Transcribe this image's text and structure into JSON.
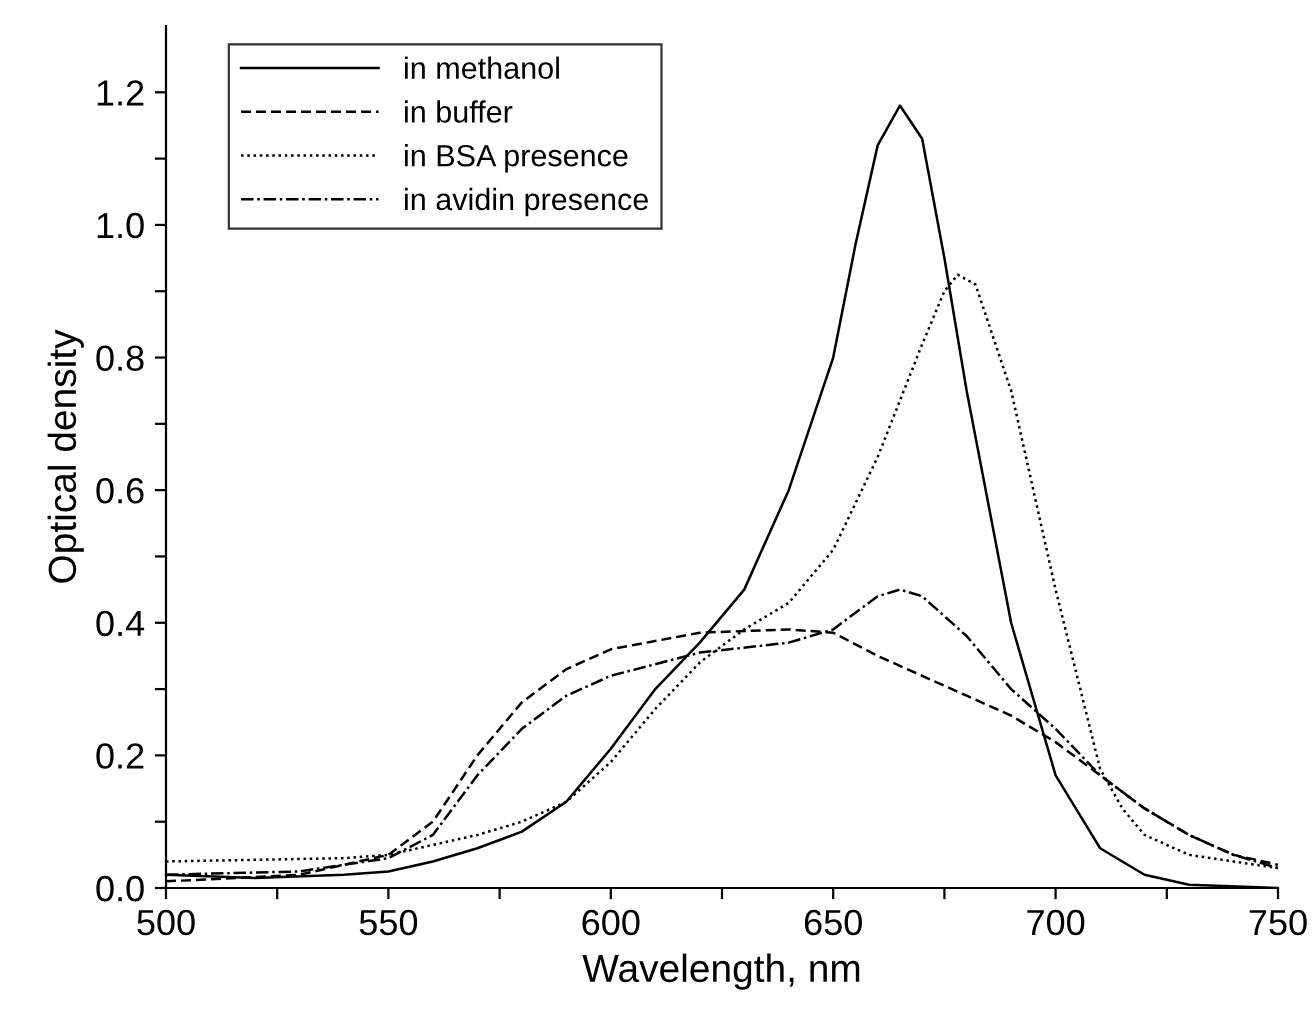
{
  "chart_data": {
    "type": "line",
    "xlabel": "Wavelength, nm",
    "ylabel": "Optical density",
    "xlim": [
      500,
      750
    ],
    "ylim": [
      0,
      1.3
    ],
    "xticks": [
      500,
      {
        "value": 525,
        "label": null
      },
      550,
      {
        "value": 575,
        "label": null
      },
      600,
      {
        "value": 625,
        "label": null
      },
      650,
      {
        "value": 675,
        "label": null
      },
      700,
      {
        "value": 725,
        "label": null
      },
      750
    ],
    "yticks": [
      {
        "value": 0,
        "label": "0.0"
      },
      {
        "value": 0.1,
        "label": null
      },
      0.2,
      {
        "value": 0.3,
        "label": null
      },
      0.4,
      {
        "value": 0.5,
        "label": null
      },
      0.6,
      {
        "value": 0.7,
        "label": null
      },
      0.8,
      {
        "value": 0.9,
        "label": null
      },
      {
        "value": 1.0,
        "label": "1.0"
      },
      {
        "value": 1.1,
        "label": null
      },
      1.2
    ],
    "legend": "top left",
    "grid": false,
    "marker": "none",
    "series": [
      {
        "name": "in methanol",
        "color": "#000000",
        "line_style": "solid",
        "x": [
          500,
          520,
          540,
          550,
          560,
          570,
          580,
          590,
          600,
          610,
          620,
          630,
          640,
          650,
          655,
          660,
          665,
          670,
          675,
          680,
          690,
          700,
          710,
          720,
          730,
          750
        ],
        "values": [
          0.02,
          0.015,
          0.02,
          0.025,
          0.04,
          0.06,
          0.085,
          0.13,
          0.21,
          0.3,
          0.37,
          0.45,
          0.6,
          0.8,
          0.97,
          1.12,
          1.18,
          1.13,
          0.95,
          0.75,
          0.4,
          0.17,
          0.06,
          0.02,
          0.005,
          0.0
        ]
      },
      {
        "name": "in buffer",
        "color": "#000000",
        "line_style": "dashed",
        "x": [
          500,
          530,
          550,
          560,
          570,
          580,
          590,
          600,
          620,
          640,
          650,
          660,
          670,
          680,
          690,
          700,
          710,
          720,
          730,
          740,
          750
        ],
        "values": [
          0.01,
          0.02,
          0.05,
          0.1,
          0.2,
          0.28,
          0.33,
          0.36,
          0.385,
          0.39,
          0.385,
          0.35,
          0.32,
          0.29,
          0.26,
          0.22,
          0.17,
          0.12,
          0.08,
          0.05,
          0.035
        ]
      },
      {
        "name": "in BSA presence",
        "color": "#000000",
        "line_style": "dotted",
        "x": [
          500,
          540,
          550,
          560,
          570,
          580,
          590,
          600,
          610,
          620,
          630,
          640,
          650,
          660,
          670,
          675,
          678,
          682,
          690,
          700,
          710,
          715,
          720,
          730,
          740,
          750
        ],
        "values": [
          0.04,
          0.045,
          0.05,
          0.065,
          0.08,
          0.1,
          0.13,
          0.19,
          0.27,
          0.34,
          0.39,
          0.43,
          0.51,
          0.65,
          0.82,
          0.9,
          0.925,
          0.91,
          0.75,
          0.45,
          0.18,
          0.12,
          0.08,
          0.05,
          0.04,
          0.03
        ]
      },
      {
        "name": "in avidin presence",
        "color": "#000000",
        "line_style": "dashdot",
        "x": [
          500,
          530,
          550,
          560,
          570,
          580,
          590,
          600,
          620,
          640,
          650,
          660,
          665,
          670,
          680,
          690,
          700,
          710,
          720,
          730,
          740,
          750
        ],
        "values": [
          0.02,
          0.025,
          0.045,
          0.08,
          0.17,
          0.24,
          0.29,
          0.32,
          0.355,
          0.37,
          0.39,
          0.44,
          0.45,
          0.44,
          0.38,
          0.3,
          0.24,
          0.17,
          0.12,
          0.08,
          0.05,
          0.03
        ]
      }
    ]
  }
}
